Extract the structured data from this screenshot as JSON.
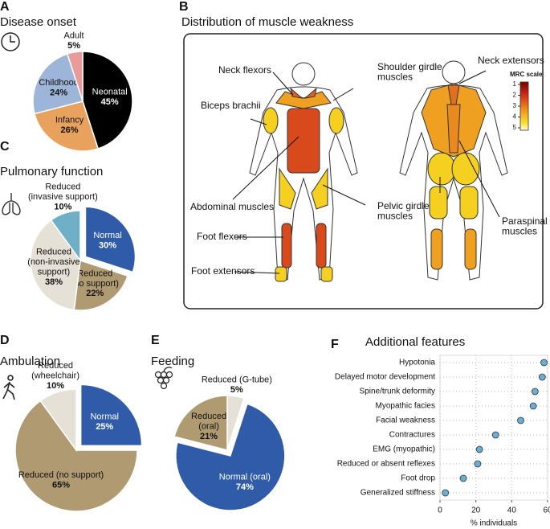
{
  "chart_data": [
    {
      "type": "pie",
      "panel": "A",
      "title": "Disease onset",
      "categories": [
        "Neonatal",
        "Infancy",
        "Childhood",
        "Adult"
      ],
      "values": [
        45,
        26,
        24,
        5
      ],
      "value_labels": [
        "45%",
        "26%",
        "24%",
        "5%"
      ],
      "colors": [
        "#000000",
        "#e8a25e",
        "#9db5d8",
        "#e99a9a"
      ],
      "explode": [
        false,
        false,
        false,
        false
      ]
    },
    {
      "type": "pie",
      "panel": "C",
      "title": "Pulmonary function",
      "categories": [
        "Normal",
        "Reduced\n(no support)",
        "Reduced\n(non-invasive\nsupport)",
        "Reduced\n(invasive support)"
      ],
      "values": [
        30,
        22,
        38,
        10
      ],
      "value_labels": [
        "30%",
        "22%",
        "38%",
        "10%"
      ],
      "colors": [
        "#2f5ba8",
        "#b09a72",
        "#e6e1d6",
        "#6fafc8"
      ],
      "explode": [
        true,
        false,
        false,
        false
      ]
    },
    {
      "type": "pie",
      "panel": "D",
      "title": "Ambulation",
      "categories": [
        "Normal",
        "Reduced (no support)",
        "Reduced\n(wheelchair)"
      ],
      "values": [
        25,
        65,
        10
      ],
      "value_labels": [
        "25%",
        "65%",
        "10%"
      ],
      "colors": [
        "#2f5ba8",
        "#b09a72",
        "#e6e1d6"
      ],
      "explode": [
        true,
        false,
        false
      ]
    },
    {
      "type": "pie",
      "panel": "E",
      "title": "Feeding",
      "categories": [
        "Reduced (G-tube)",
        "Normal (oral)",
        "Reduced\n(oral)"
      ],
      "values": [
        5,
        74,
        21
      ],
      "value_labels": [
        "5%",
        "74%",
        "21%"
      ],
      "colors": [
        "#e6e1d6",
        "#2f5ba8",
        "#b09a72"
      ],
      "explode": [
        false,
        true,
        false
      ]
    },
    {
      "type": "dot",
      "panel": "F",
      "title": "Additional features",
      "categories": [
        "Hypotonia",
        "Delayed motor development",
        "Spine/trunk deformity",
        "Myopathic facies",
        "Facial weakness",
        "Contractures",
        "EMG (myopathic)",
        "Reduced or absent reflexes",
        "Foot drop",
        "Generalized stiffness"
      ],
      "values": [
        58,
        57,
        53,
        52,
        45,
        31,
        22,
        21,
        13,
        3
      ],
      "color": "#6aaed6",
      "xlim": [
        0,
        60
      ],
      "xticks": [
        0,
        20,
        40,
        60
      ],
      "xlabel": "% individuals",
      "grid": true
    }
  ],
  "diagram": {
    "panel": "B",
    "title": "Distribution of muscle weakness",
    "labels": [
      "Neck flexors",
      "Shoulder girdle\nmuscles",
      "Neck extensors",
      "Biceps brachii",
      "Abdominal muscles",
      "Pelvic girdle\nmuscles",
      "Paraspinal\nmuscles",
      "Foot flexors",
      "Foot extensors"
    ],
    "scale_title": "MRC scale",
    "scale_ticks": [
      1,
      2,
      3,
      4,
      5
    ]
  }
}
